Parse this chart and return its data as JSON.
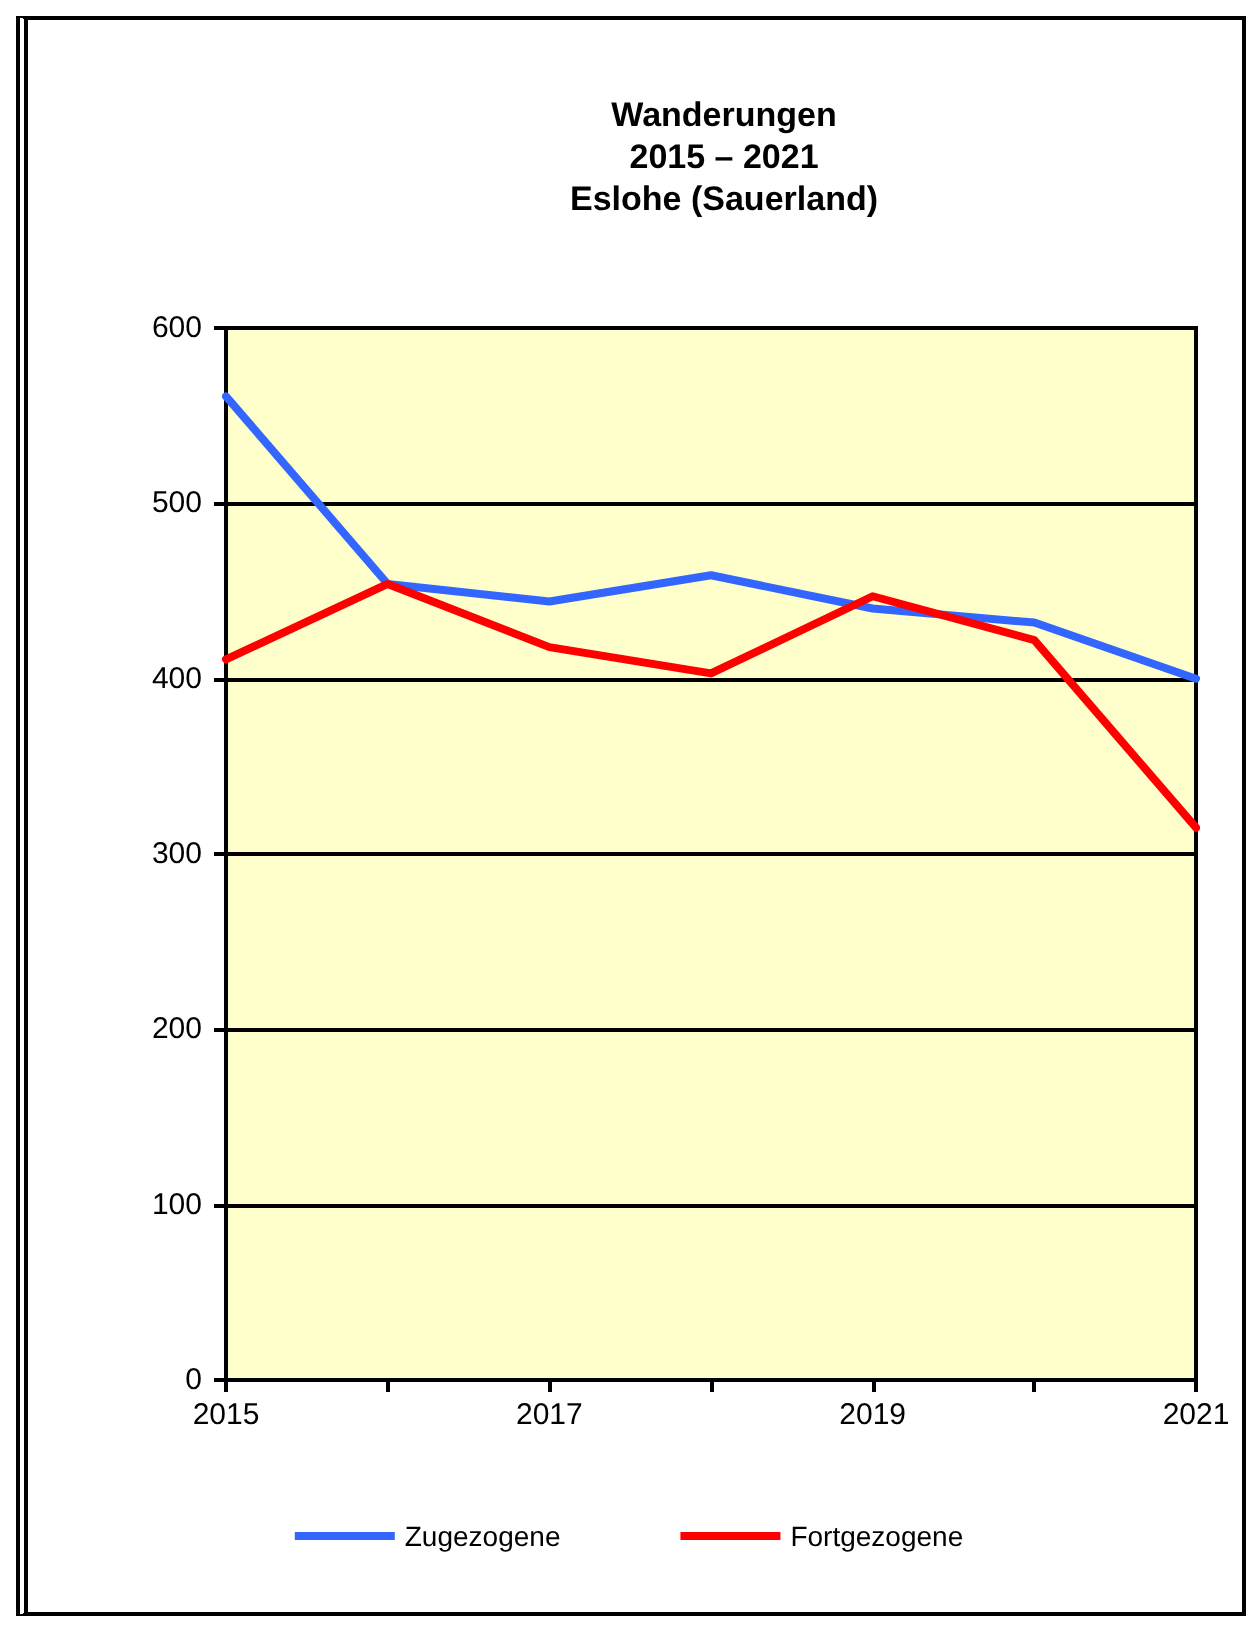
{
  "chart_data": {
    "type": "line",
    "title": "Wanderungen\n2015 – 2021\nEslohe (Sauerland)",
    "x": [
      2015,
      2016,
      2017,
      2018,
      2019,
      2020,
      2021
    ],
    "series": [
      {
        "name": "Zugezogene",
        "color": "#3366ff",
        "values": [
          561,
          454,
          444,
          459,
          440,
          432,
          400
        ]
      },
      {
        "name": "Fortgezogene",
        "color": "#ff0000",
        "values": [
          411,
          454,
          418,
          403,
          447,
          422,
          315
        ]
      }
    ],
    "xlim": [
      2015,
      2021
    ],
    "xticks": [
      2015,
      {
        "value": 2016,
        "label": null
      },
      2017,
      {
        "value": 2018,
        "label": null
      },
      2019,
      {
        "value": 2020,
        "label": null
      },
      2021
    ],
    "ylim": [
      0,
      600
    ],
    "yticks": [
      0,
      100,
      200,
      300,
      400,
      500,
      600
    ],
    "grid": "y",
    "legend": "bottom",
    "marker": "none",
    "line_style": "solid"
  }
}
